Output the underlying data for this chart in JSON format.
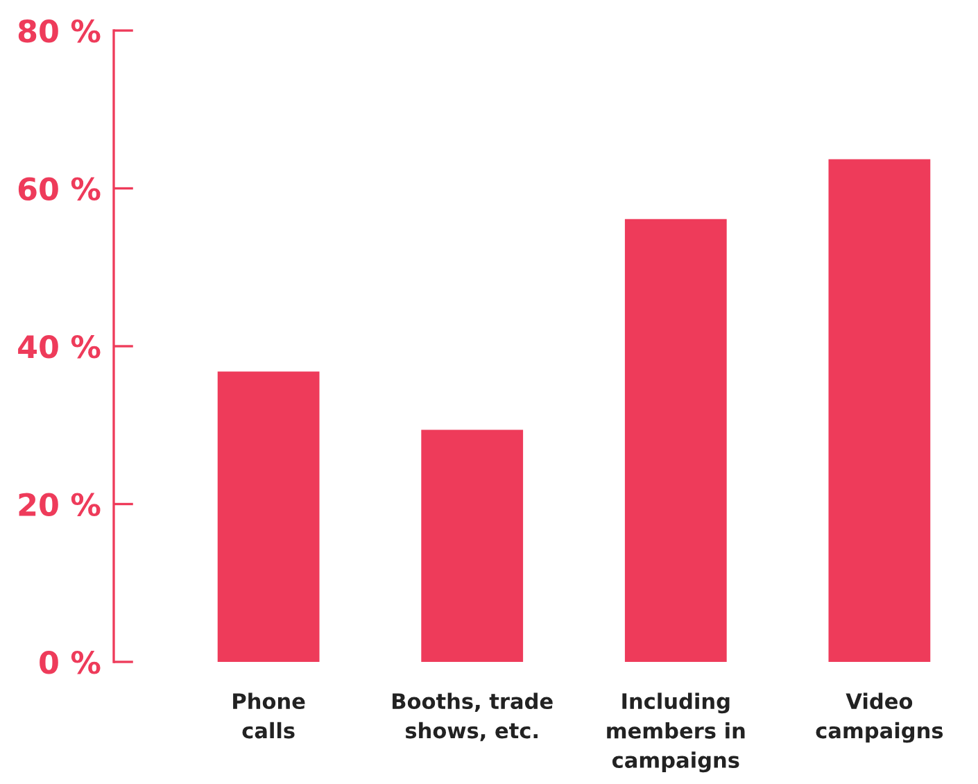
{
  "chart_data": {
    "type": "bar",
    "categories": [
      "Phone\ncalls",
      "Booths, trade\nshows, etc.",
      "Including\nmembers in\ncampaigns",
      "Video\ncampaigns"
    ],
    "values": [
      36.8,
      29.4,
      56.1,
      63.7
    ],
    "color": "#ee3b5a",
    "ylim": [
      0,
      80
    ],
    "yticks": [
      {
        "value": 0,
        "label": "0 %"
      },
      {
        "value": 20,
        "label": "20 %"
      },
      {
        "value": 40,
        "label": "40 %"
      },
      {
        "value": 60,
        "label": "60 %"
      },
      {
        "value": 80,
        "label": "80 %"
      }
    ]
  }
}
